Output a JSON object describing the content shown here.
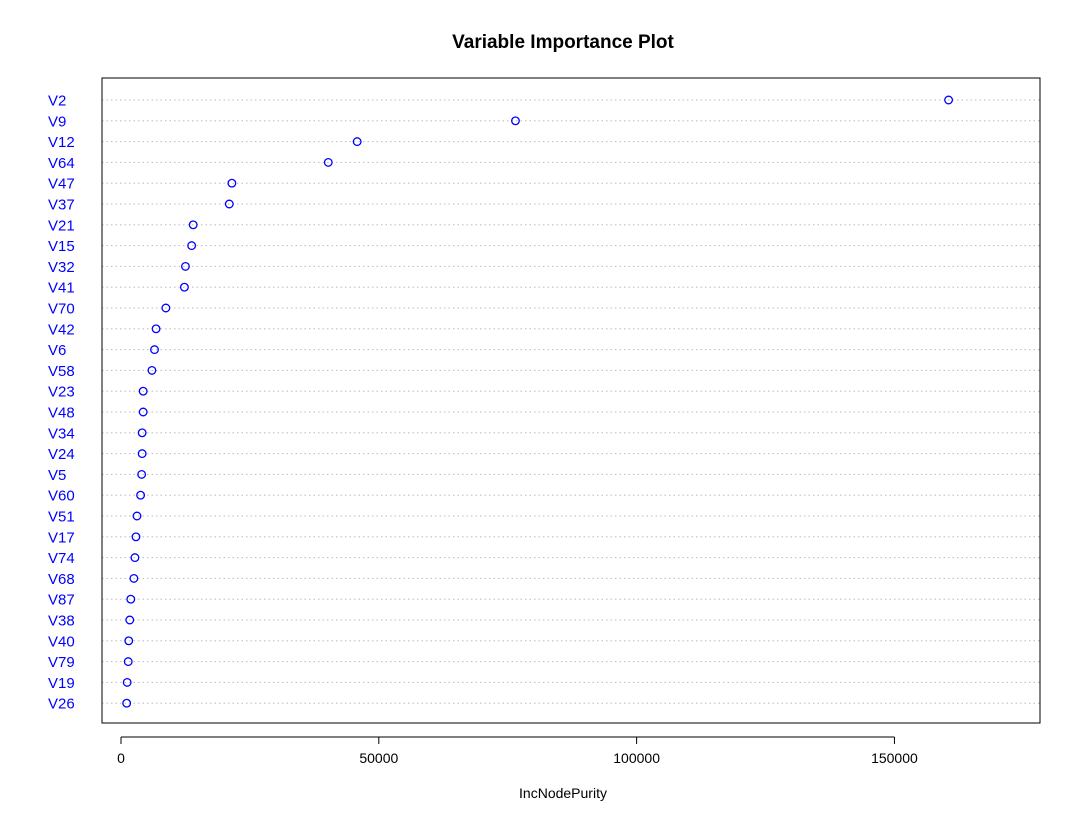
{
  "chart_data": {
    "type": "scatter",
    "title": "Variable Importance Plot",
    "xlabel": "IncNodePurity",
    "ylabel": "",
    "xlim": [
      0,
      160000
    ],
    "xticks": [
      0,
      50000,
      100000,
      150000
    ],
    "xtick_labels": [
      "0",
      "50000",
      "100000",
      "150000"
    ],
    "grid": "dotted horizontal lines at each variable",
    "colors": {
      "label": "#0000ff",
      "marker": "#0000ff",
      "grid": "#bbbbbb",
      "frame": "#000000"
    },
    "series": [
      {
        "points": [
          {
            "label": "V2",
            "value": 160500
          },
          {
            "label": "V9",
            "value": 76500
          },
          {
            "label": "V12",
            "value": 45800
          },
          {
            "label": "V64",
            "value": 40200
          },
          {
            "label": "V47",
            "value": 21500
          },
          {
            "label": "V37",
            "value": 21000
          },
          {
            "label": "V21",
            "value": 14000
          },
          {
            "label": "V15",
            "value": 13700
          },
          {
            "label": "V32",
            "value": 12500
          },
          {
            "label": "V41",
            "value": 12300
          },
          {
            "label": "V70",
            "value": 8700
          },
          {
            "label": "V42",
            "value": 6800
          },
          {
            "label": "V6",
            "value": 6500
          },
          {
            "label": "V58",
            "value": 6000
          },
          {
            "label": "V23",
            "value": 4300
          },
          {
            "label": "V48",
            "value": 4300
          },
          {
            "label": "V34",
            "value": 4100
          },
          {
            "label": "V24",
            "value": 4100
          },
          {
            "label": "V5",
            "value": 4000
          },
          {
            "label": "V60",
            "value": 3800
          },
          {
            "label": "V51",
            "value": 3100
          },
          {
            "label": "V17",
            "value": 2900
          },
          {
            "label": "V74",
            "value": 2700
          },
          {
            "label": "V68",
            "value": 2500
          },
          {
            "label": "V87",
            "value": 1900
          },
          {
            "label": "V38",
            "value": 1700
          },
          {
            "label": "V40",
            "value": 1500
          },
          {
            "label": "V79",
            "value": 1400
          },
          {
            "label": "V19",
            "value": 1200
          },
          {
            "label": "V26",
            "value": 1100
          }
        ]
      }
    ]
  }
}
